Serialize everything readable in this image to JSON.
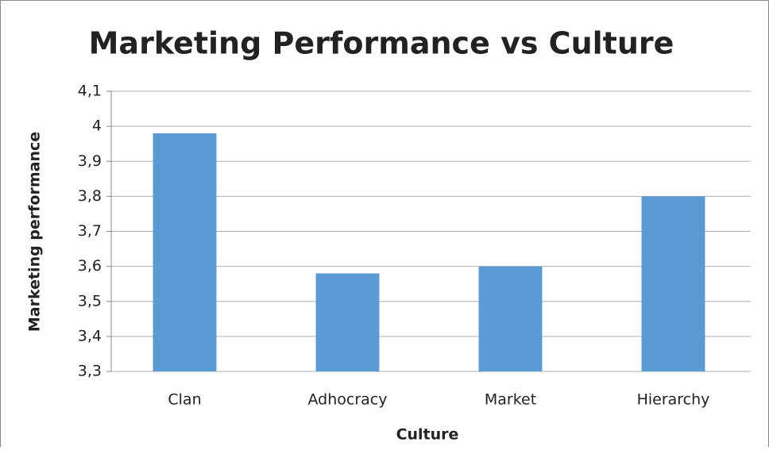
{
  "chart_data": {
    "type": "bar",
    "title": "Marketing Performance vs Culture",
    "x_label": "Culture",
    "y_label": "Marketing performance",
    "categories": [
      "Clan",
      "Adhocracy",
      "Market",
      "Hierarchy"
    ],
    "values": [
      3.98,
      3.58,
      3.6,
      3.8
    ],
    "color": "#5b9bd5",
    "ylim": [
      3.3,
      4.1
    ],
    "yticks": [
      {
        "value": 3.3,
        "label": "3,3"
      },
      {
        "value": 3.4,
        "label": "3,4"
      },
      {
        "value": 3.5,
        "label": "3,5"
      },
      {
        "value": 3.6,
        "label": "3,6"
      },
      {
        "value": 3.7,
        "label": "3,7"
      },
      {
        "value": 3.8,
        "label": "3,8"
      },
      {
        "value": 3.9,
        "label": "3,9"
      },
      4,
      {
        "value": 4.1,
        "label": "4,1"
      }
    ],
    "grid": true
  }
}
